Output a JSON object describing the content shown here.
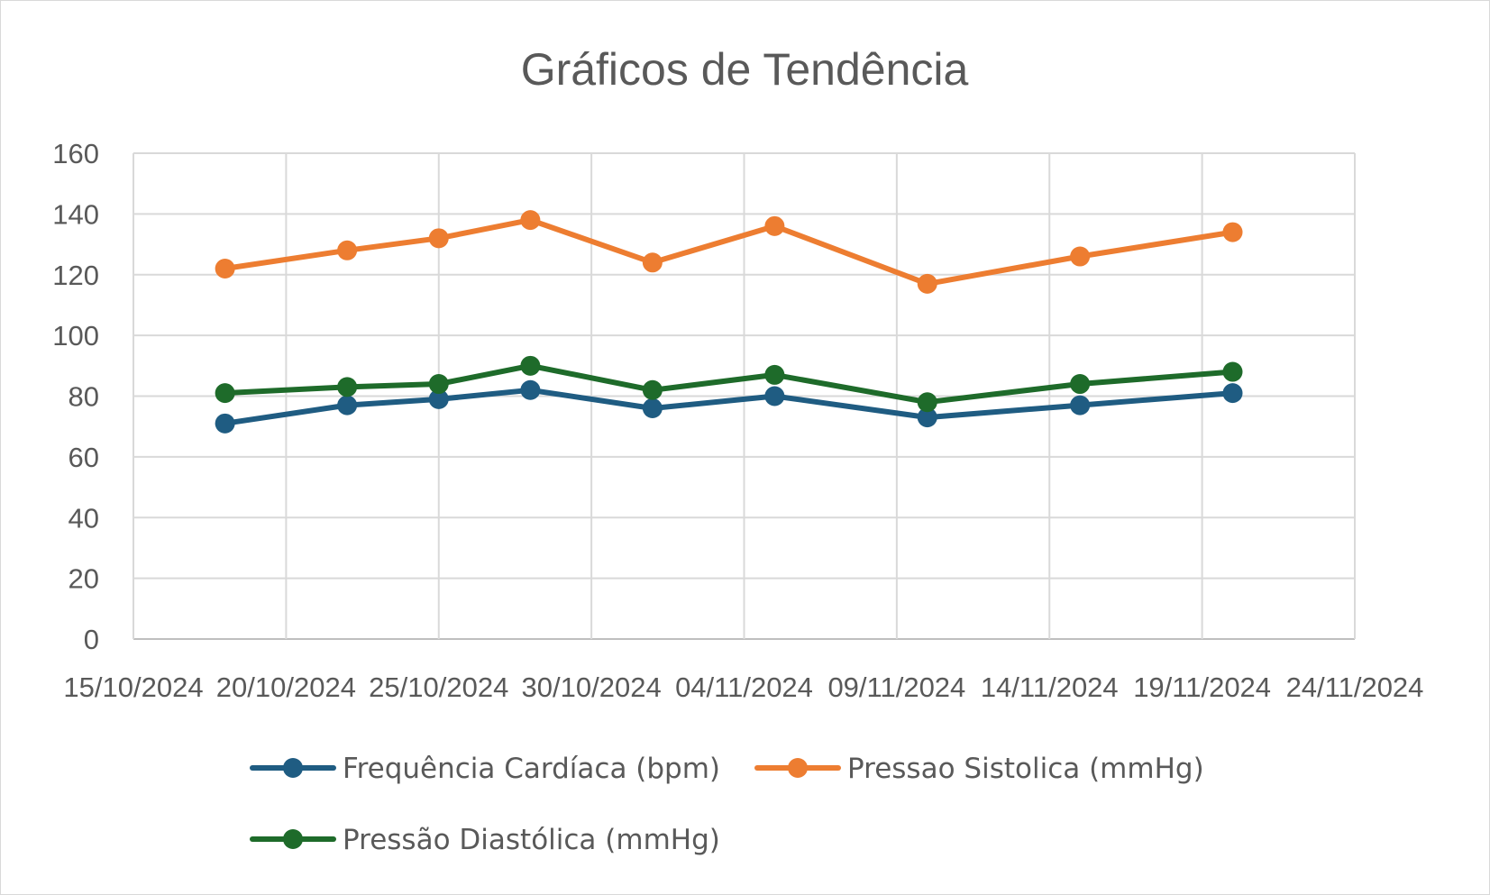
{
  "chart_data": {
    "type": "line",
    "title": "Gráficos de Tendência",
    "xlabel": "",
    "ylabel": "",
    "x_axis": {
      "type": "date",
      "ticks": [
        "15/10/2024",
        "20/10/2024",
        "25/10/2024",
        "30/10/2024",
        "04/11/2024",
        "09/11/2024",
        "14/11/2024",
        "19/11/2024",
        "24/11/2024"
      ],
      "range": [
        "15/10/2024",
        "24/11/2024"
      ]
    },
    "ylim": [
      0,
      160
    ],
    "yticks": [
      0,
      20,
      40,
      60,
      80,
      100,
      120,
      140,
      160
    ],
    "grid": true,
    "legend_position": "bottom",
    "x": [
      "18/10/2024",
      "22/10/2024",
      "25/10/2024",
      "28/10/2024",
      "01/11/2024",
      "05/11/2024",
      "10/11/2024",
      "15/11/2024",
      "20/11/2024"
    ],
    "series": [
      {
        "name": "Frequência Cardíaca (bpm)",
        "color": "#1f5c82",
        "values": [
          71,
          77,
          79,
          82,
          76,
          80,
          73,
          77,
          81
        ]
      },
      {
        "name": "Pressao Sistolica (mmHg)",
        "color": "#ed7d31",
        "values": [
          122,
          128,
          132,
          138,
          124,
          136,
          117,
          126,
          134
        ]
      },
      {
        "name": "Pressão Diastólica (mmHg)",
        "color": "#1e6b2a",
        "values": [
          81,
          83,
          84,
          90,
          82,
          87,
          78,
          84,
          88
        ]
      }
    ]
  }
}
